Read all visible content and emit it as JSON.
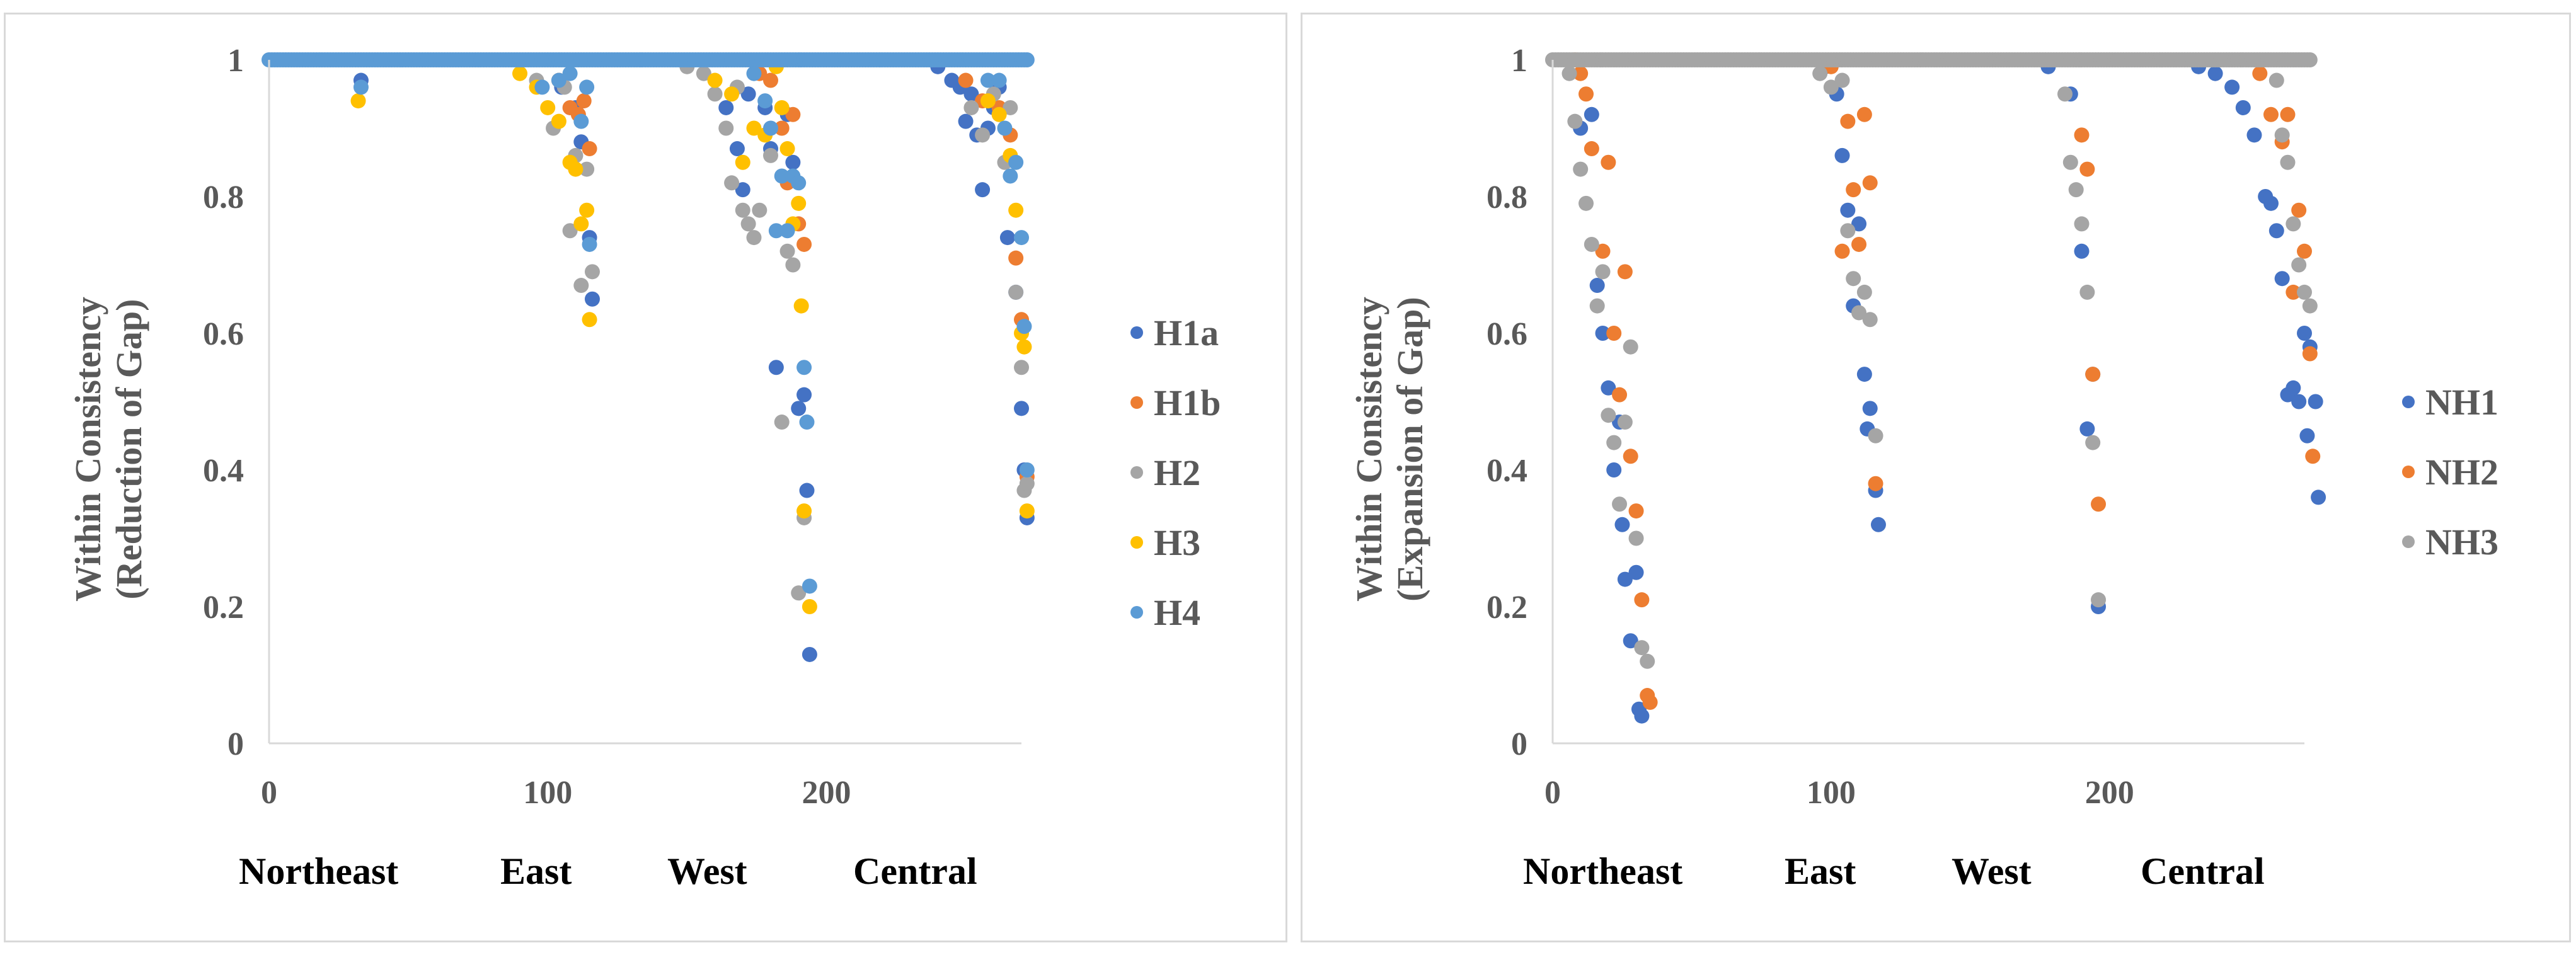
{
  "chart_data": [
    {
      "type": "scatter",
      "ylabel_line1": "Within Consistency",
      "ylabel_line2": "(Reduction of  Gap)",
      "xlim": [
        0,
        270
      ],
      "ylim": [
        0,
        1
      ],
      "xticks": [
        0,
        100,
        200
      ],
      "yticks": [
        0,
        0.2,
        0.4,
        0.6,
        0.8,
        1
      ],
      "ytick_labels": [
        "0",
        "0.2",
        "0.4",
        "0.6",
        "0.8",
        "1"
      ],
      "regions": [
        "Northeast",
        "East",
        "West",
        "Central"
      ],
      "legend_position": "right",
      "series": [
        {
          "name": "H1a",
          "color": "#4472C4",
          "points": [
            [
              33,
              0.97
            ],
            [
              105,
              0.96
            ],
            [
              110,
              0.93
            ],
            [
              112,
              0.88
            ],
            [
              115,
              0.74
            ],
            [
              116,
              0.65
            ],
            [
              164,
              0.93
            ],
            [
              168,
              0.87
            ],
            [
              170,
              0.81
            ],
            [
              172,
              0.95
            ],
            [
              178,
              0.93
            ],
            [
              180,
              0.87
            ],
            [
              182,
              0.55
            ],
            [
              186,
              0.92
            ],
            [
              188,
              0.85
            ],
            [
              190,
              0.49
            ],
            [
              192,
              0.51
            ],
            [
              193,
              0.37
            ],
            [
              194,
              0.13
            ],
            [
              240,
              0.99
            ],
            [
              245,
              0.97
            ],
            [
              248,
              0.96
            ],
            [
              250,
              0.91
            ],
            [
              252,
              0.95
            ],
            [
              254,
              0.89
            ],
            [
              256,
              0.81
            ],
            [
              258,
              0.9
            ],
            [
              260,
              0.93
            ],
            [
              262,
              0.96
            ],
            [
              265,
              0.74
            ],
            [
              268,
              0.66
            ],
            [
              270,
              0.49
            ],
            [
              271,
              0.4
            ],
            [
              272,
              0.33
            ]
          ]
        },
        {
          "name": "H1b",
          "color": "#ED7D31",
          "points": [
            [
              104,
              0.97
            ],
            [
              108,
              0.93
            ],
            [
              111,
              0.92
            ],
            [
              113,
              0.94
            ],
            [
              115,
              0.87
            ],
            [
              176,
              0.98
            ],
            [
              180,
              0.97
            ],
            [
              184,
              0.9
            ],
            [
              186,
              0.82
            ],
            [
              188,
              0.92
            ],
            [
              190,
              0.76
            ],
            [
              192,
              0.73
            ],
            [
              250,
              0.97
            ],
            [
              256,
              0.94
            ],
            [
              262,
              0.93
            ],
            [
              266,
              0.89
            ],
            [
              268,
              0.71
            ],
            [
              270,
              0.62
            ],
            [
              272,
              0.39
            ]
          ]
        },
        {
          "name": "H2",
          "color": "#A5A5A5",
          "points": [
            [
              96,
              0.97
            ],
            [
              102,
              0.9
            ],
            [
              106,
              0.96
            ],
            [
              108,
              0.75
            ],
            [
              110,
              0.86
            ],
            [
              112,
              0.67
            ],
            [
              114,
              0.84
            ],
            [
              116,
              0.69
            ],
            [
              150,
              0.99
            ],
            [
              156,
              0.98
            ],
            [
              160,
              0.95
            ],
            [
              164,
              0.9
            ],
            [
              166,
              0.82
            ],
            [
              168,
              0.96
            ],
            [
              170,
              0.78
            ],
            [
              172,
              0.76
            ],
            [
              174,
              0.74
            ],
            [
              176,
              0.78
            ],
            [
              180,
              0.86
            ],
            [
              184,
              0.47
            ],
            [
              186,
              0.72
            ],
            [
              188,
              0.7
            ],
            [
              190,
              0.22
            ],
            [
              192,
              0.33
            ],
            [
              252,
              0.93
            ],
            [
              256,
              0.89
            ],
            [
              260,
              0.95
            ],
            [
              264,
              0.85
            ],
            [
              266,
              0.93
            ],
            [
              268,
              0.66
            ],
            [
              270,
              0.55
            ],
            [
              271,
              0.37
            ],
            [
              272,
              0.38
            ]
          ]
        },
        {
          "name": "H3",
          "color": "#FFC000",
          "points": [
            [
              32,
              0.94
            ],
            [
              90,
              0.98
            ],
            [
              96,
              0.96
            ],
            [
              100,
              0.93
            ],
            [
              104,
              0.91
            ],
            [
              108,
              0.85
            ],
            [
              110,
              0.84
            ],
            [
              112,
              0.76
            ],
            [
              114,
              0.78
            ],
            [
              115,
              0.62
            ],
            [
              160,
              0.97
            ],
            [
              166,
              0.95
            ],
            [
              170,
              0.85
            ],
            [
              174,
              0.9
            ],
            [
              178,
              0.89
            ],
            [
              182,
              0.99
            ],
            [
              184,
              0.93
            ],
            [
              186,
              0.87
            ],
            [
              188,
              0.76
            ],
            [
              190,
              0.79
            ],
            [
              191,
              0.64
            ],
            [
              192,
              0.34
            ],
            [
              194,
              0.2
            ],
            [
              258,
              0.94
            ],
            [
              262,
              0.92
            ],
            [
              266,
              0.86
            ],
            [
              268,
              0.78
            ],
            [
              270,
              0.6
            ],
            [
              271,
              0.58
            ],
            [
              272,
              0.34
            ]
          ]
        },
        {
          "name": "H4",
          "color": "#5B9BD5",
          "points": [
            [
              33,
              0.96
            ],
            [
              98,
              0.96
            ],
            [
              104,
              0.97
            ],
            [
              108,
              0.98
            ],
            [
              112,
              0.91
            ],
            [
              114,
              0.96
            ],
            [
              115,
              0.73
            ],
            [
              174,
              0.98
            ],
            [
              178,
              0.94
            ],
            [
              180,
              0.9
            ],
            [
              182,
              0.75
            ],
            [
              184,
              0.83
            ],
            [
              186,
              0.75
            ],
            [
              188,
              0.83
            ],
            [
              190,
              0.82
            ],
            [
              192,
              0.55
            ],
            [
              193,
              0.47
            ],
            [
              194,
              0.23
            ],
            [
              258,
              0.97
            ],
            [
              262,
              0.97
            ],
            [
              264,
              0.9
            ],
            [
              266,
              0.83
            ],
            [
              268,
              0.85
            ],
            [
              270,
              0.74
            ],
            [
              271,
              0.61
            ],
            [
              272,
              0.4
            ]
          ]
        }
      ]
    },
    {
      "type": "scatter",
      "ylabel_line1": "Within Consistency",
      "ylabel_line2": "(Expansion of  Gap)",
      "xlim": [
        0,
        270
      ],
      "ylim": [
        0,
        1
      ],
      "xticks": [
        0,
        100,
        200
      ],
      "yticks": [
        0,
        0.2,
        0.4,
        0.6,
        0.8,
        1
      ],
      "ytick_labels": [
        "0",
        "0.2",
        "0.4",
        "0.6",
        "0.8",
        "1"
      ],
      "regions": [
        "Northeast",
        "East",
        "West",
        "Central"
      ],
      "legend_position": "right",
      "series": [
        {
          "name": "NH1",
          "color": "#4472C4",
          "points": [
            [
              10,
              0.9
            ],
            [
              14,
              0.92
            ],
            [
              16,
              0.67
            ],
            [
              18,
              0.6
            ],
            [
              20,
              0.52
            ],
            [
              22,
              0.4
            ],
            [
              24,
              0.47
            ],
            [
              25,
              0.32
            ],
            [
              26,
              0.24
            ],
            [
              28,
              0.15
            ],
            [
              30,
              0.25
            ],
            [
              31,
              0.05
            ],
            [
              32,
              0.04
            ],
            [
              98,
              0.99
            ],
            [
              102,
              0.95
            ],
            [
              104,
              0.86
            ],
            [
              106,
              0.78
            ],
            [
              108,
              0.64
            ],
            [
              110,
              0.76
            ],
            [
              112,
              0.54
            ],
            [
              113,
              0.46
            ],
            [
              114,
              0.49
            ],
            [
              116,
              0.37
            ],
            [
              117,
              0.32
            ],
            [
              178,
              0.99
            ],
            [
              186,
              0.95
            ],
            [
              190,
              0.72
            ],
            [
              192,
              0.46
            ],
            [
              194,
              0.54
            ],
            [
              196,
              0.2
            ],
            [
              232,
              0.99
            ],
            [
              238,
              0.98
            ],
            [
              244,
              0.96
            ],
            [
              248,
              0.93
            ],
            [
              252,
              0.89
            ],
            [
              256,
              0.8
            ],
            [
              258,
              0.79
            ],
            [
              260,
              0.75
            ],
            [
              262,
              0.68
            ],
            [
              264,
              0.51
            ],
            [
              266,
              0.52
            ],
            [
              268,
              0.5
            ],
            [
              270,
              0.6
            ],
            [
              271,
              0.45
            ],
            [
              272,
              0.58
            ],
            [
              274,
              0.5
            ],
            [
              275,
              0.36
            ]
          ]
        },
        {
          "name": "NH2",
          "color": "#ED7D31",
          "points": [
            [
              8,
              1
            ],
            [
              10,
              0.98
            ],
            [
              12,
              0.95
            ],
            [
              14,
              0.87
            ],
            [
              18,
              0.72
            ],
            [
              20,
              0.85
            ],
            [
              22,
              0.6
            ],
            [
              24,
              0.51
            ],
            [
              26,
              0.69
            ],
            [
              28,
              0.42
            ],
            [
              30,
              0.34
            ],
            [
              32,
              0.21
            ],
            [
              34,
              0.07
            ],
            [
              35,
              0.06
            ],
            [
              100,
              0.99
            ],
            [
              104,
              0.72
            ],
            [
              106,
              0.91
            ],
            [
              108,
              0.81
            ],
            [
              110,
              0.73
            ],
            [
              112,
              0.92
            ],
            [
              114,
              0.82
            ],
            [
              116,
              0.38
            ],
            [
              190,
              0.89
            ],
            [
              192,
              0.84
            ],
            [
              194,
              0.54
            ],
            [
              196,
              0.35
            ],
            [
              254,
              0.98
            ],
            [
              258,
              0.92
            ],
            [
              262,
              0.88
            ],
            [
              264,
              0.92
            ],
            [
              266,
              0.66
            ],
            [
              268,
              0.78
            ],
            [
              270,
              0.72
            ],
            [
              272,
              0.57
            ],
            [
              273,
              0.42
            ]
          ]
        },
        {
          "name": "NH3",
          "color": "#A5A5A5",
          "points": [
            [
              6,
              0.98
            ],
            [
              8,
              0.91
            ],
            [
              10,
              0.84
            ],
            [
              12,
              0.79
            ],
            [
              14,
              0.73
            ],
            [
              16,
              0.64
            ],
            [
              18,
              0.69
            ],
            [
              20,
              0.48
            ],
            [
              22,
              0.44
            ],
            [
              24,
              0.35
            ],
            [
              26,
              0.47
            ],
            [
              28,
              0.58
            ],
            [
              30,
              0.3
            ],
            [
              32,
              0.14
            ],
            [
              34,
              0.12
            ],
            [
              96,
              0.98
            ],
            [
              100,
              0.96
            ],
            [
              104,
              0.97
            ],
            [
              106,
              0.75
            ],
            [
              108,
              0.68
            ],
            [
              110,
              0.63
            ],
            [
              112,
              0.66
            ],
            [
              114,
              0.62
            ],
            [
              116,
              0.45
            ],
            [
              184,
              0.95
            ],
            [
              186,
              0.85
            ],
            [
              188,
              0.81
            ],
            [
              190,
              0.76
            ],
            [
              192,
              0.66
            ],
            [
              194,
              0.44
            ],
            [
              196,
              0.21
            ],
            [
              260,
              0.97
            ],
            [
              262,
              0.89
            ],
            [
              264,
              0.85
            ],
            [
              266,
              0.76
            ],
            [
              268,
              0.7
            ],
            [
              270,
              0.66
            ],
            [
              272,
              0.64
            ]
          ]
        }
      ]
    }
  ]
}
